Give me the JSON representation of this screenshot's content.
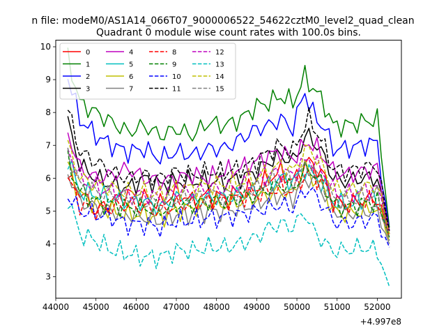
{
  "chart_data": {
    "type": "line",
    "suptitle": "n file: modeM0/AS1A14_066T07_9000006522_54622cztM0_level2_quad_clean",
    "title": "Quadrant 0 module wise count rates with 100.0s bins.",
    "xlabel": "",
    "ylabel": "",
    "x_offset_label": "+4.997e8",
    "xlim": [
      44000,
      52600
    ],
    "ylim": [
      2.35,
      10.2
    ],
    "x_ticks": [
      44000,
      45000,
      46000,
      47000,
      48000,
      49000,
      50000,
      51000,
      52000
    ],
    "y_ticks": [
      3,
      4,
      5,
      6,
      7,
      8,
      9,
      10
    ],
    "grid": false,
    "legend": {
      "position": "top-left",
      "columns": 4
    },
    "key_x": [
      44300,
      44600,
      45000,
      45400,
      45800,
      46200,
      46600,
      47000,
      47400,
      47800,
      48200,
      48600,
      49000,
      49300,
      49600,
      49900,
      50200,
      50300,
      50500,
      50700,
      50900,
      51200,
      51600,
      52000,
      52300
    ],
    "series": [
      {
        "name": "0",
        "color": "#ff0000",
        "dash": "solid",
        "key_y": [
          6.0,
          5.6,
          5.0,
          5.3,
          5.5,
          5.4,
          5.2,
          5.6,
          5.3,
          5.5,
          5.4,
          5.6,
          5.7,
          6.0,
          6.2,
          5.9,
          6.4,
          6.5,
          6.3,
          6.0,
          5.3,
          5.2,
          5.3,
          5.4,
          4.3
        ]
      },
      {
        "name": "1",
        "color": "#008000",
        "dash": "solid",
        "key_y": [
          9.7,
          8.3,
          8.0,
          7.7,
          7.4,
          7.6,
          7.3,
          7.5,
          7.3,
          7.7,
          7.6,
          7.8,
          8.2,
          8.3,
          8.5,
          8.3,
          9.1,
          8.9,
          8.6,
          8.2,
          7.6,
          7.6,
          7.7,
          7.8,
          4.5
        ]
      },
      {
        "name": "2",
        "color": "#0000ff",
        "dash": "solid",
        "key_y": [
          9.1,
          7.8,
          7.3,
          7.0,
          6.8,
          6.9,
          6.6,
          6.8,
          6.7,
          6.9,
          6.9,
          7.2,
          7.5,
          7.6,
          7.8,
          7.5,
          8.7,
          8.2,
          7.8,
          7.5,
          6.9,
          6.9,
          7.0,
          7.1,
          4.4
        ]
      },
      {
        "name": "3",
        "color": "#000000",
        "dash": "solid",
        "key_y": [
          7.7,
          6.4,
          6.0,
          5.8,
          5.7,
          6.0,
          5.8,
          5.9,
          5.9,
          5.9,
          5.9,
          6.0,
          6.2,
          6.5,
          6.7,
          6.5,
          7.2,
          7.3,
          7.0,
          6.6,
          6.0,
          5.9,
          6.0,
          6.0,
          4.3
        ]
      },
      {
        "name": "4",
        "color": "#bf00bf",
        "dash": "solid",
        "key_y": [
          7.4,
          6.3,
          6.0,
          6.1,
          6.3,
          6.0,
          5.9,
          6.0,
          6.1,
          6.0,
          6.2,
          6.3,
          6.5,
          6.7,
          6.8,
          6.6,
          7.0,
          7.1,
          6.9,
          6.6,
          6.2,
          6.1,
          6.2,
          6.3,
          4.4
        ]
      },
      {
        "name": "5",
        "color": "#00bfbf",
        "dash": "solid",
        "key_y": [
          6.6,
          5.6,
          5.5,
          5.4,
          5.3,
          5.3,
          5.1,
          5.4,
          5.3,
          5.4,
          5.4,
          5.5,
          5.6,
          5.8,
          6.0,
          5.9,
          6.3,
          6.2,
          6.0,
          5.7,
          5.3,
          5.2,
          5.3,
          5.4,
          4.2
        ]
      },
      {
        "name": "6",
        "color": "#bfbf00",
        "dash": "solid",
        "key_y": [
          6.4,
          5.5,
          5.2,
          5.0,
          4.9,
          4.9,
          4.8,
          5.0,
          5.1,
          5.2,
          5.2,
          5.3,
          5.4,
          5.5,
          5.6,
          5.5,
          6.4,
          6.1,
          5.9,
          5.6,
          5.0,
          4.9,
          5.0,
          5.1,
          4.1
        ]
      },
      {
        "name": "7",
        "color": "#808080",
        "dash": "solid",
        "key_y": [
          6.2,
          5.3,
          5.1,
          5.0,
          4.9,
          4.8,
          4.7,
          4.9,
          4.9,
          5.0,
          5.0,
          5.1,
          5.2,
          5.4,
          5.5,
          5.4,
          5.9,
          6.0,
          5.8,
          5.5,
          5.0,
          4.9,
          5.0,
          5.0,
          4.0
        ]
      },
      {
        "name": "8",
        "color": "#ff0000",
        "dash": "dashed",
        "key_y": [
          6.0,
          5.2,
          5.0,
          5.1,
          5.2,
          5.1,
          5.0,
          5.2,
          5.2,
          5.3,
          5.3,
          5.4,
          5.5,
          5.6,
          5.7,
          5.6,
          6.1,
          6.2,
          6.0,
          5.8,
          5.3,
          5.2,
          5.3,
          5.3,
          4.2
        ]
      },
      {
        "name": "9",
        "color": "#008000",
        "dash": "dashed",
        "key_y": [
          6.5,
          5.6,
          5.3,
          5.2,
          5.1,
          5.1,
          5.0,
          5.2,
          5.2,
          5.3,
          5.3,
          5.4,
          5.5,
          5.7,
          5.8,
          5.7,
          6.2,
          6.3,
          6.0,
          5.7,
          5.2,
          5.1,
          5.2,
          5.3,
          4.2
        ]
      },
      {
        "name": "10",
        "color": "#0000ff",
        "dash": "dashed",
        "key_y": [
          5.5,
          5.0,
          4.9,
          4.8,
          4.6,
          4.6,
          4.5,
          4.7,
          4.7,
          4.8,
          4.8,
          4.9,
          5.0,
          5.1,
          5.2,
          5.1,
          5.6,
          5.7,
          5.4,
          5.1,
          4.7,
          4.6,
          4.7,
          4.8,
          3.9
        ]
      },
      {
        "name": "11",
        "color": "#000000",
        "dash": "dashed",
        "key_y": [
          8.1,
          6.8,
          6.5,
          6.2,
          6.0,
          6.1,
          6.0,
          6.2,
          6.1,
          6.2,
          6.2,
          6.3,
          6.5,
          6.8,
          7.0,
          6.8,
          7.6,
          7.8,
          7.4,
          6.9,
          6.3,
          6.2,
          6.3,
          6.4,
          4.4
        ]
      },
      {
        "name": "12",
        "color": "#bf00bf",
        "dash": "dashed",
        "key_y": [
          6.9,
          6.0,
          5.7,
          5.6,
          5.5,
          5.5,
          5.4,
          5.6,
          5.6,
          5.7,
          5.7,
          5.8,
          5.9,
          6.1,
          6.2,
          6.1,
          6.5,
          6.6,
          6.4,
          6.1,
          5.6,
          5.5,
          5.6,
          5.7,
          4.3
        ]
      },
      {
        "name": "13",
        "color": "#00bfbf",
        "dash": "dashed",
        "key_y": [
          5.4,
          4.3,
          4.1,
          3.8,
          3.7,
          3.6,
          3.6,
          3.8,
          3.8,
          3.9,
          3.9,
          4.0,
          4.2,
          4.5,
          4.6,
          4.5,
          5.0,
          4.6,
          4.3,
          4.0,
          3.8,
          3.8,
          3.9,
          3.8,
          2.7
        ]
      },
      {
        "name": "14",
        "color": "#bfbf00",
        "dash": "dashed",
        "key_y": [
          7.0,
          6.0,
          5.8,
          5.7,
          5.6,
          5.6,
          5.5,
          5.7,
          5.7,
          5.8,
          5.8,
          5.9,
          6.0,
          6.2,
          6.4,
          6.2,
          6.8,
          6.9,
          6.6,
          6.2,
          5.7,
          5.6,
          5.7,
          5.8,
          4.3
        ]
      },
      {
        "name": "15",
        "color": "#808080",
        "dash": "dashed",
        "key_y": [
          6.8,
          5.8,
          5.6,
          5.5,
          5.4,
          5.3,
          5.2,
          5.4,
          5.4,
          5.5,
          5.5,
          5.6,
          5.7,
          5.9,
          6.0,
          5.9,
          6.3,
          6.4,
          6.1,
          5.8,
          5.4,
          5.3,
          5.4,
          5.5,
          4.1
        ]
      }
    ]
  }
}
